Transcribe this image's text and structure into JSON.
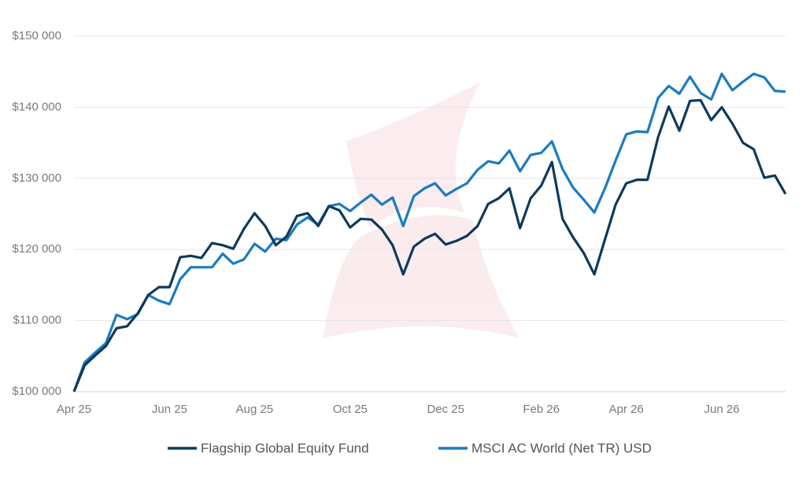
{
  "chart_data": {
    "type": "line",
    "categories": [
      "Apr 25",
      null,
      null,
      null,
      null,
      null,
      null,
      null,
      null,
      "Jun 25",
      null,
      null,
      null,
      null,
      null,
      null,
      null,
      "Aug 25",
      null,
      null,
      null,
      null,
      null,
      null,
      null,
      null,
      "Oct 25",
      null,
      null,
      null,
      null,
      null,
      null,
      null,
      null,
      "Dec 25",
      null,
      null,
      null,
      null,
      null,
      null,
      null,
      null,
      "Feb 26",
      null,
      null,
      null,
      null,
      null,
      null,
      null,
      "Apr 26",
      null,
      null,
      null,
      null,
      null,
      null,
      null,
      null,
      "Jun 26",
      null,
      null,
      null,
      null,
      null,
      null
    ],
    "series": [
      {
        "name": "Flagship Global Equity Fund",
        "color": "#0d3a5c",
        "values": [
          100000,
          103700,
          105100,
          106400,
          108900,
          109200,
          111000,
          113600,
          114700,
          114700,
          118900,
          119100,
          118800,
          120900,
          120600,
          120100,
          122900,
          125100,
          123300,
          120600,
          121800,
          124700,
          125100,
          123300,
          126100,
          125500,
          123100,
          124300,
          124200,
          122800,
          120600,
          116500,
          120400,
          121500,
          122200,
          120700,
          121200,
          121900,
          123300,
          126400,
          127200,
          128600,
          123000,
          127200,
          129000,
          132300,
          124300,
          121700,
          119500,
          116500,
          121400,
          126300,
          129300,
          129800,
          129800,
          135800,
          140100,
          136700,
          140900,
          141000,
          138200,
          140000,
          137700,
          135000,
          134100,
          130100,
          130400,
          127800
        ]
      },
      {
        "name": "MSCI AC World (Net TR) USD",
        "color": "#1a7bc0",
        "values": [
          100000,
          104100,
          105500,
          106800,
          110800,
          110200,
          110900,
          113600,
          112800,
          112300,
          115800,
          117500,
          117500,
          117500,
          119400,
          118000,
          118600,
          120800,
          119700,
          121500,
          121300,
          123500,
          124500,
          123500,
          126100,
          126400,
          125400,
          126600,
          127700,
          126300,
          127300,
          123300,
          127500,
          128600,
          129300,
          127600,
          128500,
          129300,
          131200,
          132400,
          132100,
          133900,
          131000,
          133300,
          133600,
          135200,
          131300,
          128700,
          127000,
          125200,
          128600,
          132500,
          136200,
          136600,
          136500,
          141300,
          143000,
          141900,
          144300,
          142000,
          141100,
          144700,
          142400,
          143600,
          144700,
          144200,
          142300,
          142200
        ]
      }
    ],
    "ylim": [
      100000,
      150000
    ],
    "yticks": [
      {
        "value": 100000,
        "label": "$100 000"
      },
      {
        "value": 110000,
        "label": "$110 000"
      },
      {
        "value": 120000,
        "label": "$120 000"
      },
      {
        "value": 130000,
        "label": "$130 000"
      },
      {
        "value": 140000,
        "label": "$140 000"
      },
      {
        "value": 150000,
        "label": "$150 000"
      }
    ],
    "grid": true
  }
}
